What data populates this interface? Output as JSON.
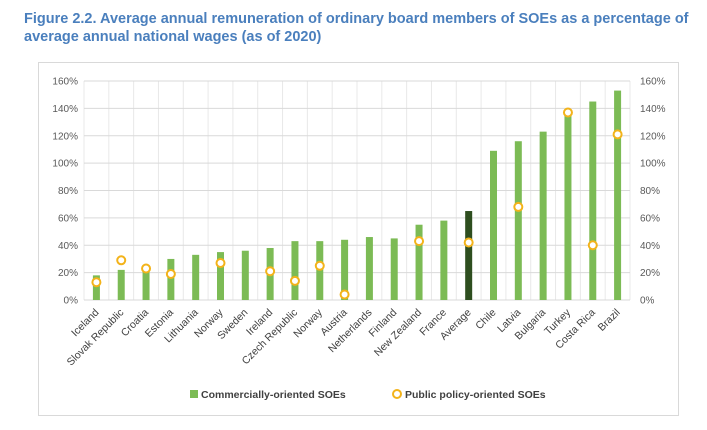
{
  "title": "Figure 2.2. Average annual remuneration of ordinary board members of SOEs as a percentage of average annual national wages (as of 2020)",
  "chart_data": {
    "type": "bar",
    "categories": [
      "Iceland",
      "Slovak Republic",
      "Croatia",
      "Estonia",
      "Lithuania",
      "Norway",
      "Sweden",
      "Ireland",
      "Czech Republic",
      "Norway",
      "Austria",
      "Netherlands",
      "Finland",
      "New Zealand",
      "France",
      "Average",
      "Chile",
      "Latvia",
      "Bulgaria",
      "Turkey",
      "Costa Rica",
      "Brazil"
    ],
    "series": [
      {
        "name": "Commercially-oriented SOEs",
        "kind": "bar",
        "values": [
          18,
          22,
          24,
          30,
          33,
          35,
          36,
          38,
          43,
          43,
          44,
          46,
          45,
          55,
          58,
          65,
          109,
          116,
          123,
          137,
          145,
          153
        ]
      },
      {
        "name": "Public policy-oriented SOEs",
        "kind": "marker",
        "values": [
          13,
          29,
          23,
          19,
          null,
          27,
          null,
          21,
          14,
          25,
          4,
          null,
          null,
          43,
          null,
          42,
          null,
          68,
          null,
          137,
          40,
          121
        ]
      }
    ],
    "highlight_category": "Average",
    "ylim": [
      0,
      160
    ],
    "yticks": [
      "0%",
      "20%",
      "40%",
      "60%",
      "80%",
      "100%",
      "120%",
      "140%",
      "160%"
    ],
    "ytick_values": [
      0,
      20,
      40,
      60,
      80,
      100,
      120,
      140,
      160
    ],
    "xlabel": "",
    "ylabel": "",
    "grid": true,
    "legend_position": "bottom",
    "colors": {
      "bar": "#7cbb55",
      "bar_highlight": "#2e4e1f",
      "marker": "#f3b31a",
      "grid": "#d9d9d9",
      "vgrid": "#e8e8e8"
    }
  }
}
